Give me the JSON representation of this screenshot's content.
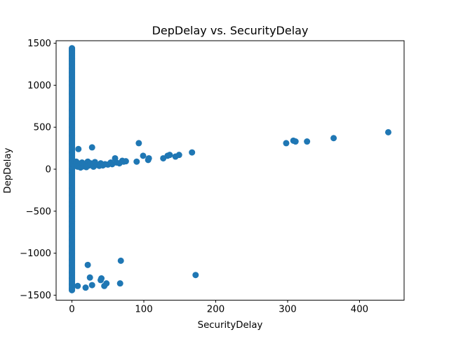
{
  "chart_data": {
    "type": "scatter",
    "title": "DepDelay vs. SecurityDelay",
    "xlabel": "SecurityDelay",
    "ylabel": "DepDelay",
    "xlim": [
      -22,
      462
    ],
    "ylim": [
      -1560,
      1530
    ],
    "x_ticks": [
      0,
      100,
      200,
      300,
      400
    ],
    "y_ticks": [
      -1500,
      -1000,
      -500,
      0,
      500,
      1000,
      1500
    ],
    "grid": false,
    "legend": "none",
    "color": "#1f77b4",
    "vertical_band": {
      "x": 0,
      "y_from": -1440,
      "y_to": 1440
    },
    "points": [
      {
        "x": 0,
        "y": 1440
      },
      {
        "x": 0,
        "y": 1420
      },
      {
        "x": 0,
        "y": 1400
      },
      {
        "x": 0,
        "y": 1380
      },
      {
        "x": 0,
        "y": 1350
      },
      {
        "x": 0,
        "y": 1320
      },
      {
        "x": 0,
        "y": 1290
      },
      {
        "x": 0,
        "y": 1250
      },
      {
        "x": 0,
        "y": 1200
      },
      {
        "x": 0,
        "y": 1150
      },
      {
        "x": 0,
        "y": 1100
      },
      {
        "x": 0,
        "y": 1050
      },
      {
        "x": 0,
        "y": 1000
      },
      {
        "x": 0,
        "y": 900
      },
      {
        "x": 0,
        "y": 800
      },
      {
        "x": 0,
        "y": 700
      },
      {
        "x": 0,
        "y": 600
      },
      {
        "x": 0,
        "y": 500
      },
      {
        "x": 0,
        "y": 400
      },
      {
        "x": 0,
        "y": 300
      },
      {
        "x": 0,
        "y": 200
      },
      {
        "x": 0,
        "y": 100
      },
      {
        "x": 0,
        "y": 0
      },
      {
        "x": 0,
        "y": -40
      },
      {
        "x": 0,
        "y": -230
      },
      {
        "x": 0,
        "y": -310
      },
      {
        "x": 0,
        "y": -390
      },
      {
        "x": 0,
        "y": -440
      },
      {
        "x": 0,
        "y": -500
      },
      {
        "x": 0,
        "y": -560
      },
      {
        "x": 0,
        "y": -620
      },
      {
        "x": 0,
        "y": -680
      },
      {
        "x": 0,
        "y": -760
      },
      {
        "x": 0,
        "y": -840
      },
      {
        "x": 0,
        "y": -920
      },
      {
        "x": 0,
        "y": -1000
      },
      {
        "x": 0,
        "y": -1080
      },
      {
        "x": 0,
        "y": -1150
      },
      {
        "x": 0,
        "y": -1230
      },
      {
        "x": 0,
        "y": -1300
      },
      {
        "x": 0,
        "y": -1370
      },
      {
        "x": 0,
        "y": -1420
      },
      {
        "x": 0,
        "y": -1440
      },
      {
        "x": 2,
        "y": 60
      },
      {
        "x": 4,
        "y": 40
      },
      {
        "x": 6,
        "y": 90
      },
      {
        "x": 8,
        "y": 30
      },
      {
        "x": 9,
        "y": 240
      },
      {
        "x": 10,
        "y": 50
      },
      {
        "x": 12,
        "y": 20
      },
      {
        "x": 14,
        "y": 80
      },
      {
        "x": 16,
        "y": 35
      },
      {
        "x": 18,
        "y": 60
      },
      {
        "x": 20,
        "y": 25
      },
      {
        "x": 22,
        "y": 90
      },
      {
        "x": 24,
        "y": 45
      },
      {
        "x": 26,
        "y": 70
      },
      {
        "x": 28,
        "y": 260
      },
      {
        "x": 30,
        "y": 30
      },
      {
        "x": 32,
        "y": 85
      },
      {
        "x": 35,
        "y": 50
      },
      {
        "x": 38,
        "y": 40
      },
      {
        "x": 40,
        "y": 70
      },
      {
        "x": 43,
        "y": 45
      },
      {
        "x": 46,
        "y": 60
      },
      {
        "x": 50,
        "y": 55
      },
      {
        "x": 54,
        "y": 80
      },
      {
        "x": 56,
        "y": 60
      },
      {
        "x": 60,
        "y": 130
      },
      {
        "x": 62,
        "y": 80
      },
      {
        "x": 66,
        "y": 70
      },
      {
        "x": 70,
        "y": 100
      },
      {
        "x": 72,
        "y": 90
      },
      {
        "x": 75,
        "y": 95
      },
      {
        "x": 90,
        "y": 90
      },
      {
        "x": 93,
        "y": 310
      },
      {
        "x": 99,
        "y": 160
      },
      {
        "x": 106,
        "y": 110
      },
      {
        "x": 107,
        "y": 130
      },
      {
        "x": 127,
        "y": 130
      },
      {
        "x": 133,
        "y": 160
      },
      {
        "x": 136,
        "y": 170
      },
      {
        "x": 144,
        "y": 150
      },
      {
        "x": 149,
        "y": 170
      },
      {
        "x": 167,
        "y": 200
      },
      {
        "x": 298,
        "y": 310
      },
      {
        "x": 308,
        "y": 340
      },
      {
        "x": 311,
        "y": 330
      },
      {
        "x": 327,
        "y": 330
      },
      {
        "x": 364,
        "y": 370
      },
      {
        "x": 440,
        "y": 440
      },
      {
        "x": 8,
        "y": -1390
      },
      {
        "x": 19,
        "y": -1410
      },
      {
        "x": 22,
        "y": -1140
      },
      {
        "x": 25,
        "y": -1290
      },
      {
        "x": 28,
        "y": -1380
      },
      {
        "x": 40,
        "y": -1320
      },
      {
        "x": 41,
        "y": -1300
      },
      {
        "x": 45,
        "y": -1390
      },
      {
        "x": 48,
        "y": -1360
      },
      {
        "x": 67,
        "y": -1360
      },
      {
        "x": 68,
        "y": -1090
      },
      {
        "x": 172,
        "y": -1260
      }
    ]
  }
}
